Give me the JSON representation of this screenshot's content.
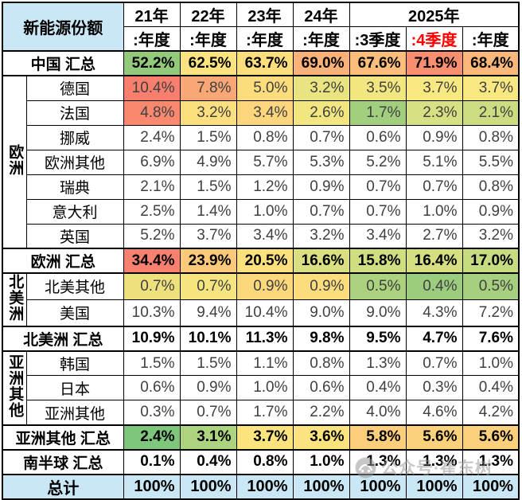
{
  "colors": {
    "band_blue": "#C9E7F5",
    "quarter4_red": "#FF0000",
    "grid": "#000000"
  },
  "watermark": {
    "text": "公众号·崔东树",
    "logo": "gray-circle-logo"
  },
  "header": {
    "title": "新能源份额",
    "year_groups": [
      {
        "label": "21年",
        "span": 1
      },
      {
        "label": "22年",
        "span": 1
      },
      {
        "label": "23年",
        "span": 1
      },
      {
        "label": "24年",
        "span": 1
      },
      {
        "label": "2025年",
        "span": 3
      }
    ],
    "sub_headers": [
      {
        "label": ":年度",
        "red": false
      },
      {
        "label": ":年度",
        "red": false
      },
      {
        "label": ":年度",
        "red": false
      },
      {
        "label": ":年度",
        "red": false
      },
      {
        "label": ":3季度",
        "red": false
      },
      {
        "label": ":4季度",
        "red": true
      },
      {
        "label": ":年度",
        "red": false
      }
    ]
  },
  "rows": [
    {
      "kind": "summary",
      "label": "中国 汇总",
      "values": [
        "52.2%",
        "62.5%",
        "63.7%",
        "69.0%",
        "67.6%",
        "71.9%",
        "68.4%"
      ],
      "cell_colors": [
        "#92C97B",
        "#FBE380",
        "#FCDE7D",
        "#FBB278",
        "#FCBE7A",
        "#F98E70",
        "#FBB87A"
      ]
    },
    {
      "kind": "country",
      "group": {
        "label": "欧洲",
        "rowspan": 7
      },
      "label": "德国",
      "values": [
        "10.4%",
        "7.8%",
        "5.0%",
        "3.2%",
        "3.5%",
        "3.7%",
        "3.7%"
      ],
      "cell_colors": [
        "#F87E6D",
        "#FAA776",
        "#FCDC7D",
        "#E9E481",
        "#F2E680",
        "#F7E881",
        "#F7E881"
      ]
    },
    {
      "kind": "country",
      "label": "法国",
      "values": [
        "4.8%",
        "3.2%",
        "3.4%",
        "2.6%",
        "1.7%",
        "2.3%",
        "2.1%"
      ],
      "cell_colors": [
        "#F9886F",
        "#FBDF7E",
        "#FCD57C",
        "#F2E680",
        "#A2CF7E",
        "#D7E082",
        "#CCDC80"
      ]
    },
    {
      "kind": "country",
      "label": "挪威",
      "values": [
        "2.4%",
        "1.5%",
        "0.8%",
        "0.7%",
        "0.6%",
        "0.9%",
        "0.8%"
      ],
      "cell_colors": [
        null,
        null,
        null,
        null,
        null,
        null,
        null
      ]
    },
    {
      "kind": "country",
      "label": "欧洲其他",
      "values": [
        "6.9%",
        "4.9%",
        "5.7%",
        "5.3%",
        "5.2%",
        "5.1%",
        "5.5%"
      ],
      "cell_colors": [
        null,
        null,
        null,
        null,
        null,
        null,
        null
      ]
    },
    {
      "kind": "country",
      "label": "瑞典",
      "values": [
        "2.1%",
        "1.5%",
        "1.2%",
        "0.9%",
        "0.7%",
        "0.7%",
        "0.8%"
      ],
      "cell_colors": [
        null,
        null,
        null,
        null,
        null,
        null,
        null
      ]
    },
    {
      "kind": "country",
      "label": "意大利",
      "values": [
        "2.5%",
        "1.4%",
        "1.0%",
        "0.7%",
        "0.7%",
        "1.0%",
        "0.9%"
      ],
      "cell_colors": [
        null,
        null,
        null,
        null,
        null,
        null,
        null
      ]
    },
    {
      "kind": "country",
      "label": "英国",
      "values": [
        "5.2%",
        "3.7%",
        "3.4%",
        "3.2%",
        "3.4%",
        "2.7%",
        "3.2%"
      ],
      "cell_colors": [
        null,
        null,
        null,
        null,
        null,
        null,
        null
      ]
    },
    {
      "kind": "summary",
      "label": "欧洲 汇总",
      "values": [
        "34.4%",
        "23.9%",
        "20.5%",
        "16.6%",
        "15.8%",
        "16.4%",
        "17.0%"
      ],
      "cell_colors": [
        "#F8806E",
        "#FCC97B",
        "#FBE07D",
        "#DAE081",
        "#D0DE81",
        "#D5DF81",
        "#C7DB80"
      ]
    },
    {
      "kind": "country",
      "group": {
        "label": "北美洲",
        "rowspan": 2
      },
      "label": "北美其他",
      "values": [
        "0.7%",
        "0.7%",
        "0.9%",
        "0.9%",
        "0.5%",
        "0.4%",
        "0.5%"
      ],
      "cell_colors": [
        "#EFE07E",
        "#F4E580",
        "#FCD87C",
        "#FCDD7D",
        "#ABD27F",
        "#9CCD7E",
        "#A6D07F"
      ]
    },
    {
      "kind": "country",
      "label": "美国",
      "values": [
        "10.3%",
        "9.4%",
        "10.4%",
        "9.0%",
        "9.0%",
        "4.3%",
        "7.2%"
      ],
      "cell_colors": [
        null,
        null,
        null,
        null,
        null,
        null,
        null
      ]
    },
    {
      "kind": "summary",
      "label": "北美洲 汇总",
      "values": [
        "10.9%",
        "10.1%",
        "11.3%",
        "9.8%",
        "9.5%",
        "4.7%",
        "7.6%"
      ],
      "cell_colors": [
        null,
        null,
        null,
        null,
        null,
        null,
        null
      ]
    },
    {
      "kind": "country",
      "group": {
        "label": "亚洲其他",
        "rowspan": 3
      },
      "label": "韩国",
      "values": [
        "1.5%",
        "1.5%",
        "1.1%",
        "0.8%",
        "1.3%",
        "0.7%",
        "1.0%"
      ],
      "cell_colors": [
        null,
        null,
        null,
        null,
        null,
        null,
        null
      ]
    },
    {
      "kind": "country",
      "label": "日本",
      "values": [
        "0.6%",
        "0.9%",
        "1.0%",
        "0.6%",
        "0.4%",
        "0.3%",
        "0.4%"
      ],
      "cell_colors": [
        null,
        null,
        null,
        null,
        null,
        null,
        null
      ]
    },
    {
      "kind": "country",
      "label": "亚洲其他",
      "values": [
        "0.3%",
        "0.7%",
        "1.7%",
        "2.2%",
        "4.0%",
        "4.6%",
        "4.2%"
      ],
      "cell_colors": [
        null,
        null,
        null,
        null,
        null,
        null,
        null
      ]
    },
    {
      "kind": "summary",
      "label": "亚洲其他 汇总",
      "values": [
        "2.4%",
        "3.1%",
        "3.7%",
        "3.6%",
        "5.8%",
        "5.6%",
        "5.6%"
      ],
      "cell_colors": [
        "#7EC67C",
        "#ACD37E",
        "#FBE37E",
        "#FBE480",
        "#FCCE7B",
        "#FCD17C",
        "#FCD17C"
      ]
    },
    {
      "kind": "summary",
      "label": "南半球 汇总",
      "values": [
        "0.1%",
        "0.4%",
        "0.8%",
        "1.0%",
        "1.3%",
        "1.3%",
        "1.3%"
      ],
      "cell_colors": [
        null,
        null,
        null,
        null,
        null,
        null,
        null
      ]
    },
    {
      "kind": "total",
      "label": "总计",
      "values": [
        "100%",
        "100%",
        "100%",
        "100%",
        "100%",
        "100%",
        "100%"
      ],
      "cell_colors": [
        "#C9E7F5",
        "#C9E7F5",
        "#C9E7F5",
        "#C9E7F5",
        "#C9E7F5",
        "#C9E7F5",
        "#C9E7F5"
      ]
    }
  ]
}
